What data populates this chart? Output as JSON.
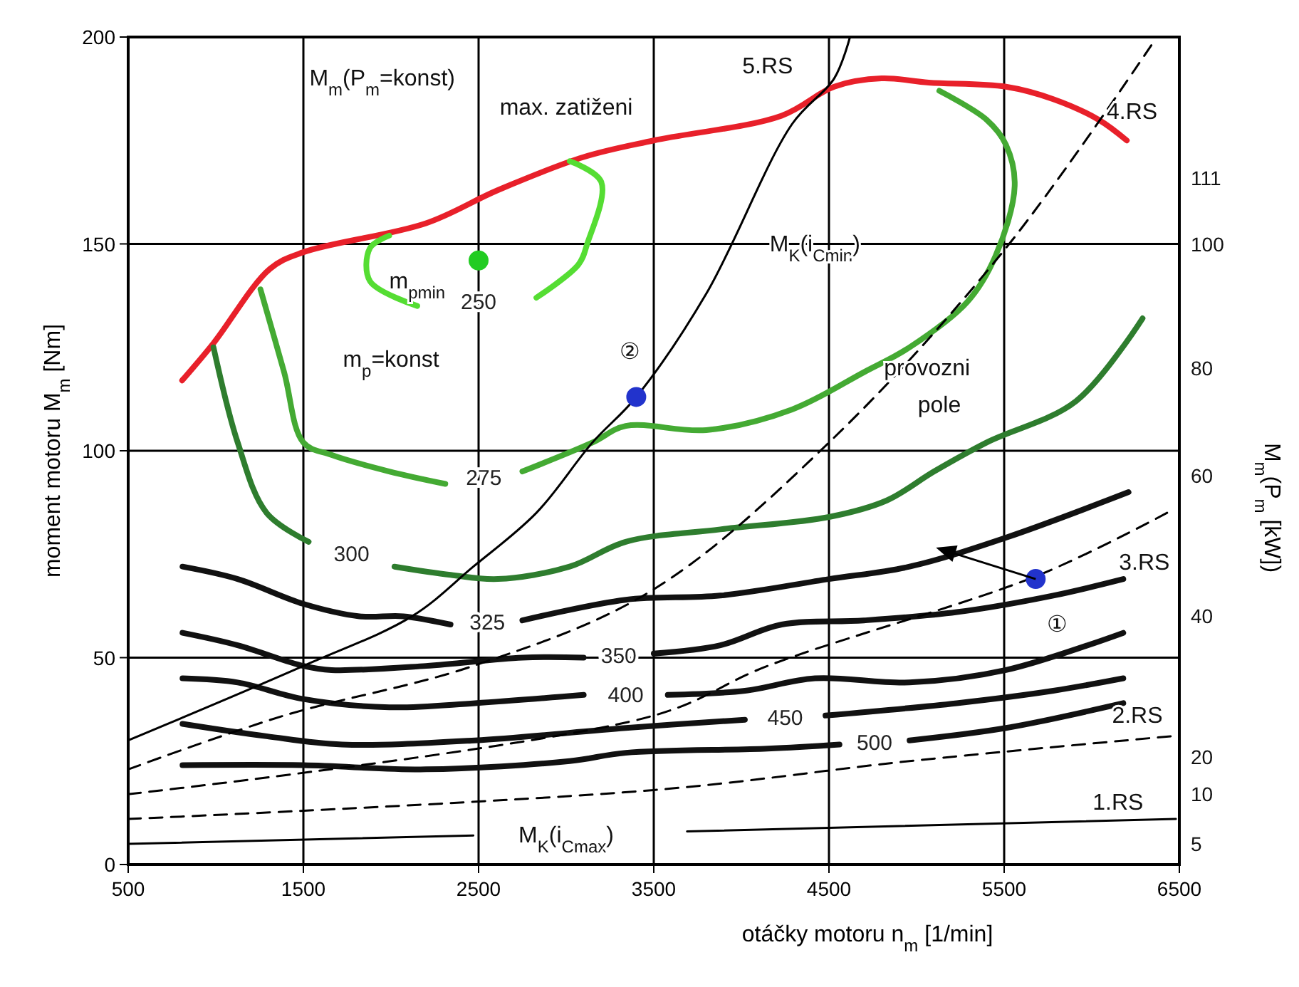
{
  "chart_data": {
    "type": "line",
    "xlabel": "otáčky motoru  n$_{m}$ [1/min]",
    "ylabel": "moment  motoru   M$_{m}$ [Nm]",
    "y2label": "M$_{m}$(P$_{m}$ [kW])",
    "xlim": [
      500,
      6500
    ],
    "xticks": [
      500,
      1500,
      2500,
      3500,
      4500,
      5500,
      6500
    ],
    "ylim": [
      0,
      200
    ],
    "yticks": [
      0,
      50,
      100,
      150,
      200
    ],
    "grid": true,
    "marker": "none",
    "series": [
      {
        "color": "#e8202a",
        "x": [
          808,
          987,
          1310,
          1500,
          2200,
          2610,
          3100,
          3500,
          4230,
          4530,
          4800,
          5070,
          5510,
          5780,
          6040,
          6200
        ],
        "values": [
          117,
          126,
          144,
          148,
          155,
          163,
          171,
          175,
          181,
          188,
          190,
          189,
          188,
          185,
          180,
          175
        ]
      },
      {
        "name": "250",
        "color": "#55dd33",
        "x": [
          3020,
          3200,
          3120,
          3070,
          2830,
          2500,
          2150,
          1880,
          1880,
          1990
        ],
        "values": [
          170,
          165,
          150,
          145,
          137,
          null,
          135,
          141,
          149,
          152
        ]
      },
      {
        "name": "275",
        "color": "#44aa33",
        "x": [
          1255,
          1390,
          1500,
          1660,
          1990,
          2310,
          2530,
          2750,
          3150,
          3340,
          3800,
          4290,
          4700,
          4960,
          5290,
          5450,
          5560,
          5510,
          5400,
          5130
        ],
        "values": [
          139,
          119,
          102,
          99,
          95,
          92,
          null,
          95,
          102,
          106,
          105,
          110,
          119,
          125,
          136,
          147,
          164,
          174,
          180,
          187
        ]
      },
      {
        "name": "300",
        "color": "#2e7d2e",
        "x": [
          987,
          1125,
          1290,
          1530,
          1775,
          2020,
          2340,
          2610,
          3020,
          3340,
          3880,
          4500,
          4830,
          5100,
          5400,
          5910,
          6290
        ],
        "values": [
          125,
          102,
          85,
          78,
          null,
          72,
          70,
          69,
          72,
          78,
          81,
          84,
          88,
          95,
          102,
          112,
          132
        ]
      },
      {
        "name": "325",
        "color": "#111111",
        "x": [
          810,
          1125,
          1500,
          1820,
          2070,
          2340,
          2550,
          2750,
          3340,
          3880,
          4500,
          4960,
          5510,
          6210
        ],
        "values": [
          72,
          69,
          63,
          60,
          60,
          58,
          null,
          59,
          64,
          65,
          69,
          72,
          79,
          90
        ]
      },
      {
        "name": "350",
        "color": "#111111",
        "x": [
          810,
          1125,
          1500,
          1660,
          2200,
          2750,
          3100,
          3300,
          3500,
          3880,
          4230,
          4700,
          5230,
          5780,
          6180
        ],
        "values": [
          56,
          53,
          48,
          47,
          48,
          50,
          50,
          null,
          51,
          53,
          58,
          59,
          61,
          65,
          69
        ]
      },
      {
        "name": "400",
        "color": "#111111",
        "x": [
          810,
          1125,
          1500,
          1990,
          2480,
          3100,
          3340,
          3580,
          4020,
          4420,
          4960,
          5510,
          6180
        ],
        "values": [
          45,
          44,
          40,
          38,
          39,
          41,
          null,
          41,
          42,
          45,
          44,
          47,
          56
        ]
      },
      {
        "name": "450",
        "color": "#111111",
        "x": [
          810,
          1290,
          1720,
          2480,
          3340,
          4020,
          4250,
          4480,
          5230,
          5780,
          6180
        ],
        "values": [
          34,
          31,
          29,
          30,
          33,
          35,
          null,
          36,
          39,
          42,
          45
        ]
      },
      {
        "name": "500",
        "color": "#111111",
        "x": [
          810,
          1500,
          2200,
          3020,
          3340,
          4150,
          4560,
          4760,
          4960,
          5510,
          6180
        ],
        "values": [
          24,
          24,
          23,
          25,
          27,
          28,
          29,
          null,
          30,
          33,
          39
        ]
      },
      {
        "color": "#000000",
        "x": [
          500,
          1500,
          2120,
          2470,
          2830,
          3150,
          3400,
          3800,
          4290,
          4530,
          4620
        ],
        "values": [
          30,
          48,
          60,
          72,
          85,
          102,
          113,
          138,
          179,
          190,
          200
        ]
      },
      {
        "color": "#000000",
        "line_style": "dashed",
        "x": [
          500,
          1390,
          2470,
          3480,
          4500,
          5510,
          6340
        ],
        "values": [
          23,
          36,
          48,
          66,
          102,
          149,
          198
        ]
      },
      {
        "color": "#000000",
        "line_style": "dashed",
        "x": [
          500,
          3500,
          4150,
          5700,
          6430
        ],
        "values": [
          17,
          36,
          48,
          70,
          85
        ]
      },
      {
        "color": "#000000",
        "line_style": "dashed",
        "x": [
          500,
          3500,
          4960,
          6450
        ],
        "values": [
          11,
          18,
          25,
          31
        ]
      },
      {
        "color": "#000000",
        "x": [
          500,
          2470
        ],
        "values": [
          5,
          7
        ]
      },
      {
        "color": "#000000",
        "x": [
          3690,
          6480
        ],
        "values": [
          8,
          11
        ]
      },
      {
        "type": "scatter",
        "marker": "circle",
        "x": [
          2500,
          3400,
          5680
        ],
        "values": [
          146,
          113,
          69
        ],
        "colors": [
          "#22cc22",
          "#2233cc",
          "#2233cc"
        ]
      }
    ],
    "annotations": [
      "max. zatiženi",
      "m$_{pmin}$",
      "m$_{p}$=konst",
      "M$_{m}$(P$_{m}$=konst)",
      "M$_{K}$(i$_{Cmin}$)",
      "M$_{K}$(i$_{Cmax}$)",
      "provozni",
      "pole",
      "②",
      "①",
      "5.RS",
      "4.RS",
      "3.RS",
      "2.RS",
      "1.RS",
      "111",
      "100",
      "80",
      "60",
      "40",
      "20",
      "10",
      "5"
    ]
  }
}
